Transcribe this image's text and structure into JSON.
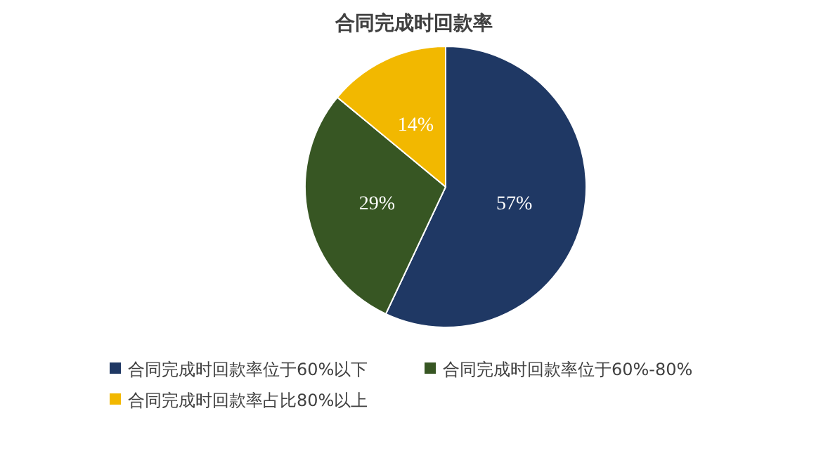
{
  "chart_data": {
    "type": "pie",
    "title": "合同完成时回款率",
    "categories": [
      "合同完成时回款率位于60%以下",
      "合同完成时回款率位于60%-80%",
      "合同完成时回款率占比80%以上"
    ],
    "values": [
      57,
      29,
      14
    ],
    "value_labels": [
      "57%",
      "29%",
      "14%"
    ],
    "colors": [
      "#1f3864",
      "#375623",
      "#f2b800"
    ],
    "legend": "bottom"
  }
}
